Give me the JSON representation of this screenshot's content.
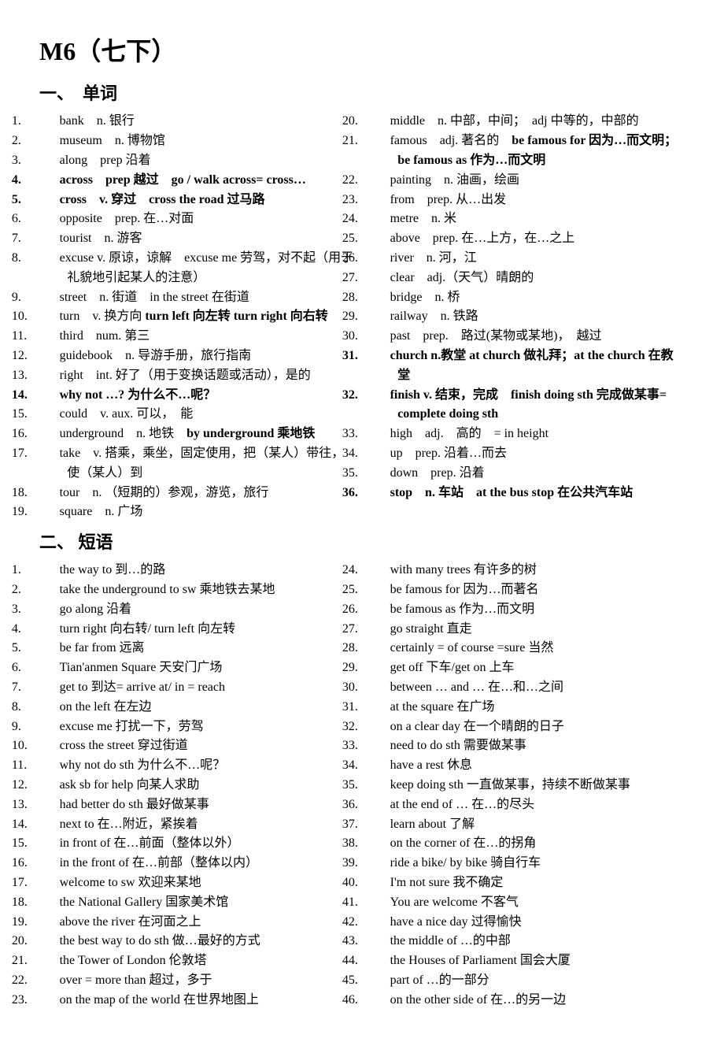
{
  "title": "M6（七下）",
  "section1": {
    "heading": "一、　单词",
    "left": [
      {
        "n": "1.",
        "t": "bank　n. 银行",
        "b": false
      },
      {
        "n": "2.",
        "t": "museum　n. 博物馆",
        "b": false
      },
      {
        "n": "3.",
        "t": "along　prep 沿着",
        "b": false
      },
      {
        "n": "4.",
        "t": "across　prep 越过　go / walk across= cross…",
        "b": true
      },
      {
        "n": "5.",
        "t": "cross　v. 穿过　cross the road 过马路",
        "b": true
      },
      {
        "n": "6.",
        "t": "opposite　prep. 在…对面",
        "b": false
      },
      {
        "n": "7.",
        "t": "tourist　n. 游客",
        "b": false
      },
      {
        "n": "8.",
        "t": "excuse v. 原谅，谅解　excuse me 劳驾，对不起（用于礼貌地引起某人的注意）",
        "b": false
      },
      {
        "n": "9.",
        "t": "street　n. 街道　in the street 在街道",
        "b": false,
        "note_bold": false
      },
      {
        "n": "10.",
        "t": "turn　v. 换方向 <b>turn left 向左转 turn right 向右转</b>",
        "b": false,
        "html": true
      },
      {
        "n": "11.",
        "t": "third　num. 第三",
        "b": false
      },
      {
        "n": "12.",
        "t": "guidebook　n. 导游手册，旅行指南",
        "b": false
      },
      {
        "n": "13.",
        "t": "right　int. 好了（用于变换话题或活动），是的",
        "b": false
      },
      {
        "n": "14.",
        "t": "why not …? 为什么不…呢？",
        "b": true
      },
      {
        "n": "15.",
        "t": "could　v. aux. 可以，　能",
        "b": false
      },
      {
        "n": "16.",
        "t": "underground　n. 地铁　<b>by underground 乘地铁</b>",
        "b": false,
        "html": true
      },
      {
        "n": "17.",
        "t": "take　v. 搭乘，乘坐，固定使用，把（某人）带往，使（某人）到",
        "b": false
      },
      {
        "n": "18.",
        "t": "tour　n. （短期的）参观，游览，旅行",
        "b": false
      },
      {
        "n": "19.",
        "t": "square　n. 广场",
        "b": false
      }
    ],
    "right": [
      {
        "n": "20.",
        "t": "middle　n. 中部，中间；　adj 中等的，中部的",
        "b": false
      },
      {
        "n": "21.",
        "t": "famous　adj. 著名的　<b>be famous for 因为…而文明；　be famous as 作为…而文明</b>",
        "b": false,
        "html": true
      },
      {
        "n": "22.",
        "t": "painting　n. 油画，绘画",
        "b": false
      },
      {
        "n": "23.",
        "t": "from　prep. 从…出发",
        "b": false
      },
      {
        "n": "24.",
        "t": "metre　n. 米",
        "b": false
      },
      {
        "n": "25.",
        "t": "above　prep. 在…上方，在…之上",
        "b": false
      },
      {
        "n": "26.",
        "t": "river　n. 河，江",
        "b": false
      },
      {
        "n": "27.",
        "t": "clear　adj.（天气）晴朗的",
        "b": false
      },
      {
        "n": "28.",
        "t": "bridge　n. 桥",
        "b": false
      },
      {
        "n": "29.",
        "t": "railway　n. 铁路",
        "b": false
      },
      {
        "n": "30.",
        "t": "past　prep.　路过(某物或某地)，　越过",
        "b": false
      },
      {
        "n": "31.",
        "t": "church n.教堂 at church 做礼拜；at the church 在教堂",
        "b": true
      },
      {
        "n": "32.",
        "t": "finish v. 结束，完成　finish doing sth 完成做某事= complete doing sth",
        "b": true
      },
      {
        "n": "33.",
        "t": "high　adj.　高的　= in height",
        "b": false
      },
      {
        "n": "34.",
        "t": "up　prep. 沿着…而去",
        "b": false
      },
      {
        "n": "35.",
        "t": "down　prep. 沿着",
        "b": false
      },
      {
        "n": "36.",
        "t": "stop　n. 车站　<b>at the bus stop 在公共汽车站</b>",
        "b": true,
        "html": true
      }
    ]
  },
  "section2": {
    "heading": "二、 短语",
    "left": [
      {
        "n": "1.",
        "t": "the way to 到…的路"
      },
      {
        "n": "2.",
        "t": "take the underground to sw 乘地铁去某地"
      },
      {
        "n": "3.",
        "t": "go along 沿着"
      },
      {
        "n": "4.",
        "t": "turn right 向右转/ turn left 向左转"
      },
      {
        "n": "5.",
        "t": "be far from 远离"
      },
      {
        "n": "6.",
        "t": "Tian'anmen Square 天安门广场"
      },
      {
        "n": "7.",
        "t": "get to 到达= arrive at/ in = reach"
      },
      {
        "n": "8.",
        "t": "on the left 在左边"
      },
      {
        "n": "9.",
        "t": "excuse me 打扰一下，劳驾"
      },
      {
        "n": "10.",
        "t": "cross the street 穿过街道"
      },
      {
        "n": "11.",
        "t": "why not do sth 为什么不…呢？"
      },
      {
        "n": "12.",
        "t": "ask sb for help 向某人求助"
      },
      {
        "n": "13.",
        "t": "had better do sth 最好做某事"
      },
      {
        "n": "14.",
        "t": "next to 在…附近，紧挨着"
      },
      {
        "n": "15.",
        "t": "in front of 在…前面（整体以外）"
      },
      {
        "n": "16.",
        "t": "in the front of 在…前部（整体以内）"
      },
      {
        "n": "17.",
        "t": "welcome to sw 欢迎来某地"
      },
      {
        "n": "18.",
        "t": "the National Gallery 国家美术馆"
      },
      {
        "n": "19.",
        "t": "above the river 在河面之上"
      },
      {
        "n": "20.",
        "t": "the best way to do sth 做…最好的方式"
      },
      {
        "n": "21.",
        "t": "the Tower of London 伦敦塔"
      },
      {
        "n": "22.",
        "t": "over = more than 超过，多于"
      },
      {
        "n": "23.",
        "t": "on the map of the world 在世界地图上"
      }
    ],
    "right": [
      {
        "n": "24.",
        "t": "with many trees 有许多的树"
      },
      {
        "n": "25.",
        "t": "be famous for 因为…而著名"
      },
      {
        "n": "26.",
        "t": "be famous as 作为…而文明"
      },
      {
        "n": "27.",
        "t": "go straight 直走"
      },
      {
        "n": "28.",
        "t": "certainly = of course =sure 当然"
      },
      {
        "n": "29.",
        "t": "get off 下车/get on 上车"
      },
      {
        "n": "30.",
        "t": "between … and … 在…和…之间"
      },
      {
        "n": "31.",
        "t": "at the square 在广场"
      },
      {
        "n": "32.",
        "t": "on a clear day 在一个晴朗的日子"
      },
      {
        "n": "33.",
        "t": "need to do sth 需要做某事"
      },
      {
        "n": "34.",
        "t": "have a rest 休息"
      },
      {
        "n": "35.",
        "t": "keep doing sth 一直做某事，持续不断做某事"
      },
      {
        "n": "36.",
        "t": "at the end of … 在…的尽头"
      },
      {
        "n": "37.",
        "t": "learn about 了解"
      },
      {
        "n": "38.",
        "t": "on the corner of 在…的拐角"
      },
      {
        "n": "39.",
        "t": "ride a bike/ by bike 骑自行车"
      },
      {
        "n": "40.",
        "t": "I'm not sure 我不确定"
      },
      {
        "n": "41.",
        "t": "You are welcome 不客气"
      },
      {
        "n": "42.",
        "t": "have a nice day 过得愉快"
      },
      {
        "n": "43.",
        "t": "the middle of …的中部"
      },
      {
        "n": "44.",
        "t": "the Houses of Parliament 国会大厦"
      },
      {
        "n": "45.",
        "t": "part of …的一部分"
      },
      {
        "n": "46.",
        "t": "on the other side of 在…的另一边"
      }
    ]
  }
}
